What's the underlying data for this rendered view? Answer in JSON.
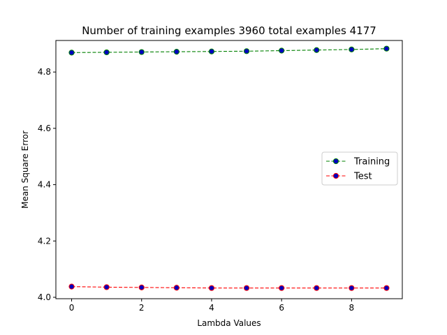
{
  "chart_data": {
    "type": "line",
    "title": "Number of training examples 3960 total examples 4177",
    "xlabel": "Lambda Values",
    "ylabel": "Mean Square Error",
    "xlim": [
      -0.45,
      9.45
    ],
    "ylim": [
      3.995,
      4.912
    ],
    "xticks": [
      0,
      2,
      4,
      6,
      8
    ],
    "xtick_labels": [
      "0",
      "2",
      "4",
      "6",
      "8"
    ],
    "yticks": [
      4.0,
      4.2,
      4.4,
      4.6,
      4.8
    ],
    "ytick_labels": [
      "4.0",
      "4.2",
      "4.4",
      "4.6",
      "4.8"
    ],
    "grid": false,
    "legend_position": "center-right",
    "x": [
      0,
      1,
      2,
      3,
      4,
      5,
      6,
      7,
      8,
      9
    ],
    "series": [
      {
        "name": "Training",
        "values": [
          4.869,
          4.87,
          4.871,
          4.872,
          4.873,
          4.874,
          4.876,
          4.878,
          4.88,
          4.883
        ],
        "line_color": "#008000",
        "marker_face": "#0000bf",
        "marker_edge": "#008000"
      },
      {
        "name": "Test",
        "values": [
          4.038,
          4.036,
          4.035,
          4.034,
          4.033,
          4.033,
          4.033,
          4.033,
          4.033,
          4.033
        ],
        "line_color": "#ff0000",
        "marker_face": "#0000bf",
        "marker_edge": "#ff0000"
      }
    ]
  }
}
